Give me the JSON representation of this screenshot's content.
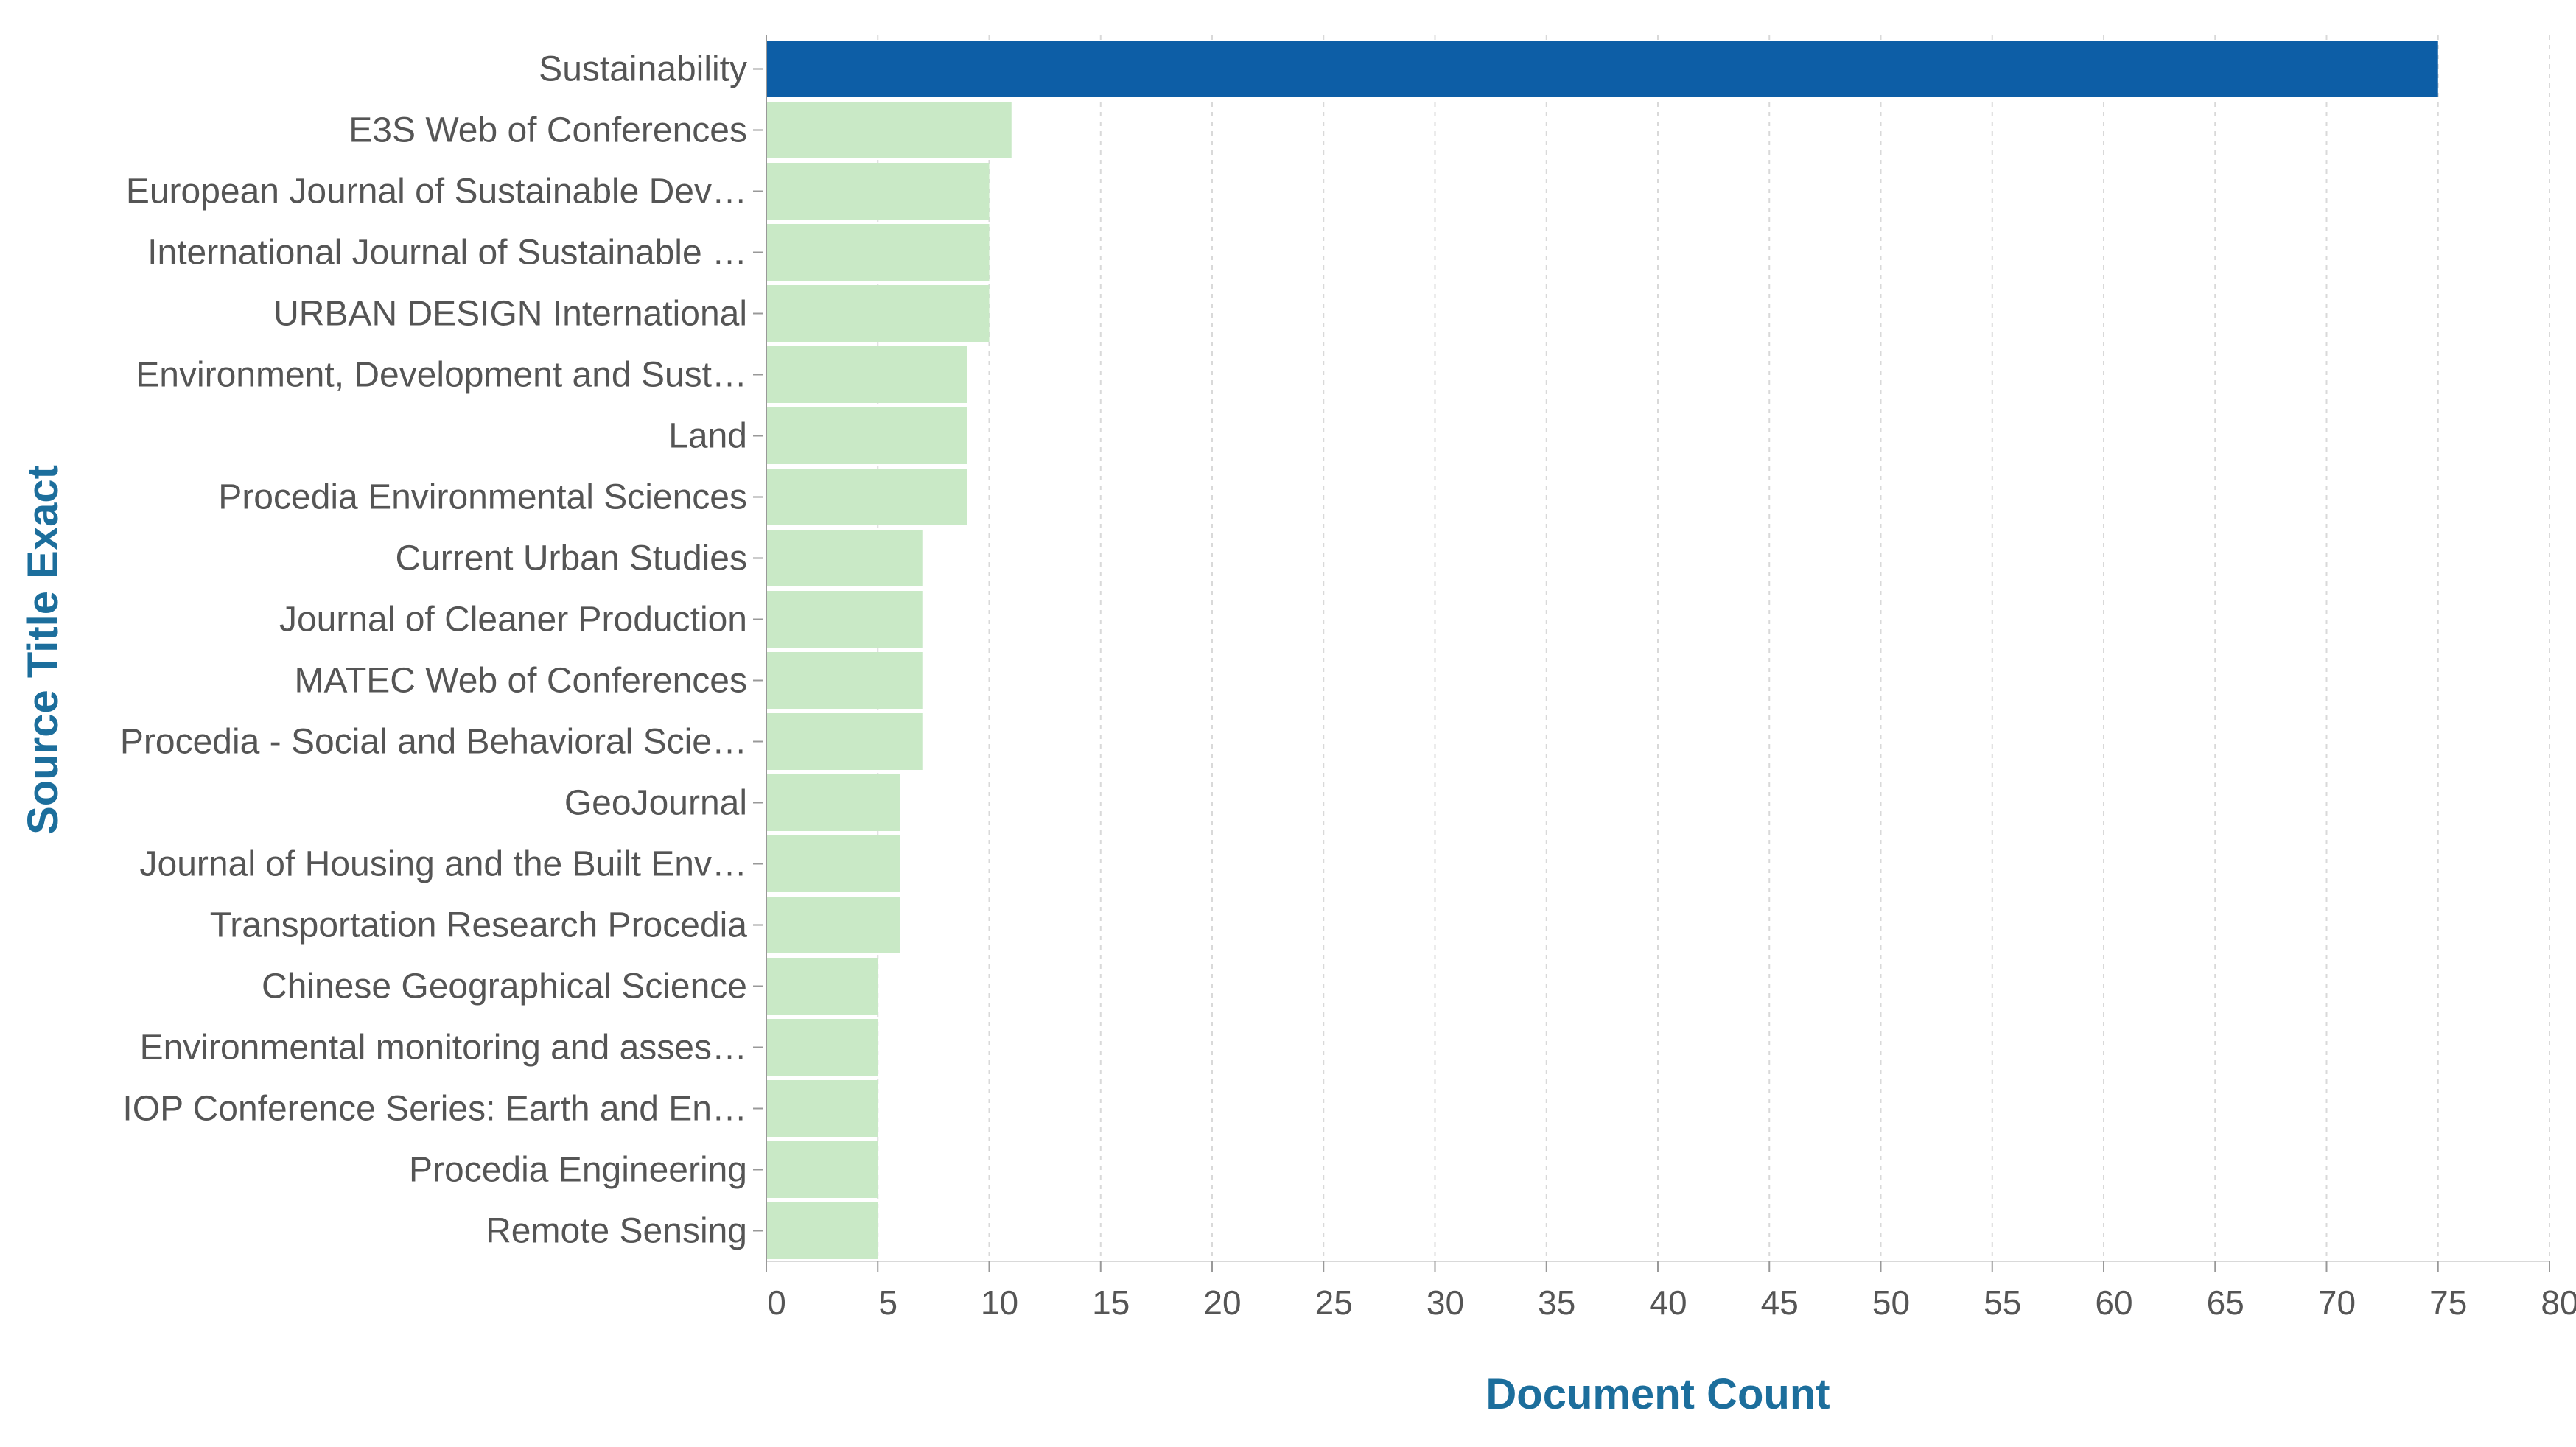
{
  "chart_data": {
    "type": "bar",
    "orientation": "horizontal",
    "title": "",
    "xlabel": "Document Count",
    "ylabel": "Source Title Exact",
    "xlim": [
      0,
      80
    ],
    "x_ticks": [
      0,
      5,
      10,
      15,
      20,
      25,
      30,
      35,
      40,
      45,
      50,
      55,
      60,
      65,
      70,
      75,
      80
    ],
    "grid": "vertical dashed",
    "legend": "none",
    "colors": {
      "highlight": "#0d5ea6",
      "bar": "#c9e9c6",
      "axis_title": "#1c6e9c",
      "tick_text": "#555555",
      "grid": "#d9d9d9",
      "axis_line": "#999999"
    },
    "categories": [
      "Sustainability",
      "E3S Web of Conferences",
      "European Journal of Sustainable Dev…",
      "International Journal of Sustainable …",
      "URBAN DESIGN International",
      "Environment, Development and Sust…",
      "Land",
      "Procedia Environmental Sciences",
      "Current Urban Studies",
      "Journal of Cleaner Production",
      "MATEC Web of Conferences",
      "Procedia - Social and Behavioral Scie…",
      "GeoJournal",
      "Journal of Housing and the Built Env…",
      "Transportation Research Procedia",
      "Chinese Geographical Science",
      "Environmental monitoring and asses…",
      "IOP Conference Series: Earth and En…",
      "Procedia Engineering",
      "Remote Sensing"
    ],
    "values": [
      75,
      11,
      10,
      10,
      10,
      9,
      9,
      9,
      7,
      7,
      7,
      7,
      6,
      6,
      6,
      5,
      5,
      5,
      5,
      5
    ],
    "highlighted": [
      "Sustainability"
    ]
  }
}
